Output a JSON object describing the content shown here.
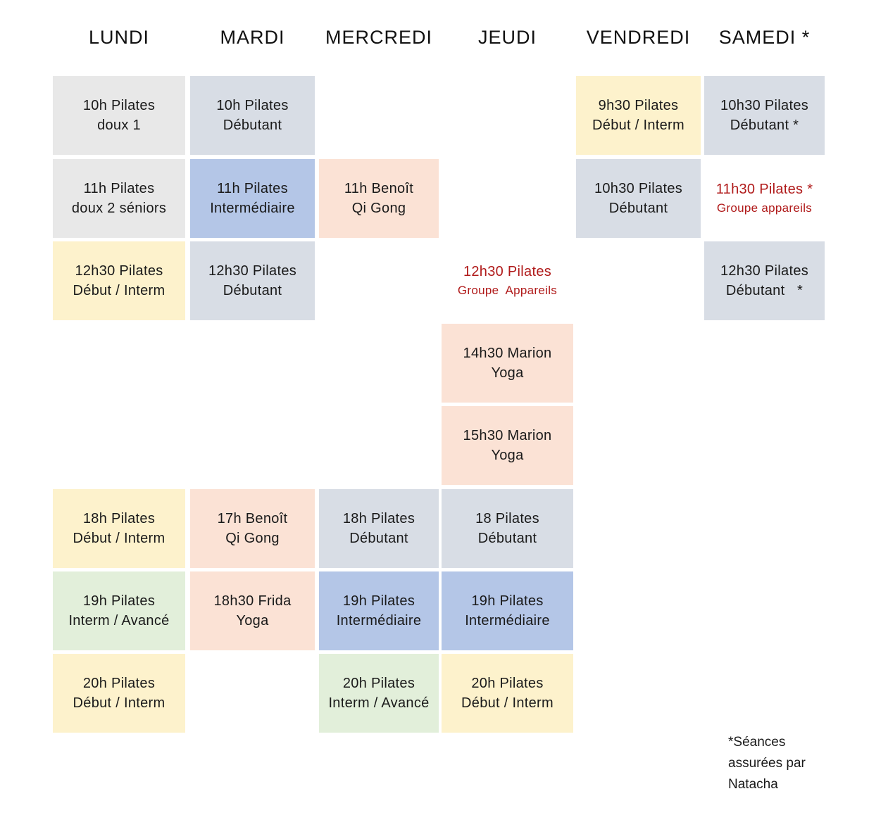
{
  "days": [
    "LUNDI",
    "MARDI",
    "MERCREDI",
    "JEUDI",
    "VENDREDI",
    "SAMEDI *"
  ],
  "classes": {
    "lundi_10h": {
      "line1": "10h Pilates",
      "line2": "doux 1"
    },
    "lundi_11h": {
      "line1": "11h Pilates",
      "line2": "doux 2 séniors"
    },
    "lundi_12h30": {
      "line1": "12h30 Pilates",
      "line2": "Début / Interm"
    },
    "lundi_18h": {
      "line1": "18h Pilates",
      "line2": "Début / Interm"
    },
    "lundi_19h": {
      "line1": "19h Pilates",
      "line2": "Interm / Avancé"
    },
    "lundi_20h": {
      "line1": "20h Pilates",
      "line2": "Début / Interm"
    },
    "mardi_10h": {
      "line1": "10h Pilates",
      "line2": "Débutant"
    },
    "mardi_11h": {
      "line1": "11h Pilates",
      "line2": "Intermédiaire"
    },
    "mardi_12h30": {
      "line1": "12h30 Pilates",
      "line2": "Débutant"
    },
    "mardi_17h": {
      "line1": "17h Benoît",
      "line2": "Qi Gong"
    },
    "mardi_18h30": {
      "line1": "18h30 Frida",
      "line2": "Yoga"
    },
    "mercredi_11h": {
      "line1": "11h Benoît",
      "line2": "Qi Gong"
    },
    "mercredi_18h": {
      "line1": "18h Pilates",
      "line2": "Débutant"
    },
    "mercredi_19h": {
      "line1": "19h Pilates",
      "line2": "Intermédiaire"
    },
    "mercredi_20h": {
      "line1": "20h Pilates",
      "line2": "Interm / Avancé"
    },
    "jeudi_12h30": {
      "line1": "12h30 Pilates",
      "line2": "Groupe  Appareils"
    },
    "jeudi_14h30": {
      "line1": "14h30 Marion",
      "line2": "Yoga"
    },
    "jeudi_15h30": {
      "line1": "15h30 Marion",
      "line2": "Yoga"
    },
    "jeudi_18": {
      "line1": "18 Pilates",
      "line2": "Débutant"
    },
    "jeudi_19h": {
      "line1": "19h Pilates",
      "line2": "Intermédiaire"
    },
    "jeudi_20h": {
      "line1": "20h Pilates",
      "line2": "Début / Interm"
    },
    "vendredi_9h30": {
      "line1": "9h30 Pilates",
      "line2": "Début / Interm"
    },
    "vendredi_10h30": {
      "line1": "10h30 Pilates",
      "line2": "Débutant"
    },
    "samedi_10h30": {
      "line1": "10h30 Pilates",
      "line2": "Débutant *"
    },
    "samedi_11h30": {
      "line1": "11h30 Pilates *",
      "line2": "Groupe appareils"
    },
    "samedi_12h30": {
      "line1": "12h30 Pilates",
      "line2": "Débutant   *"
    }
  },
  "colors": {
    "grey": "#e8e8e8",
    "slate": "#d8dde5",
    "blue": "#b4c6e7",
    "peach": "#fbe2d5",
    "yellow": "#fdf2cc",
    "green": "#e2efda",
    "highlight_text": "#b01a1a"
  },
  "note": {
    "line1": "*Séances",
    "line2": "assurées par",
    "line3": "Natacha"
  }
}
